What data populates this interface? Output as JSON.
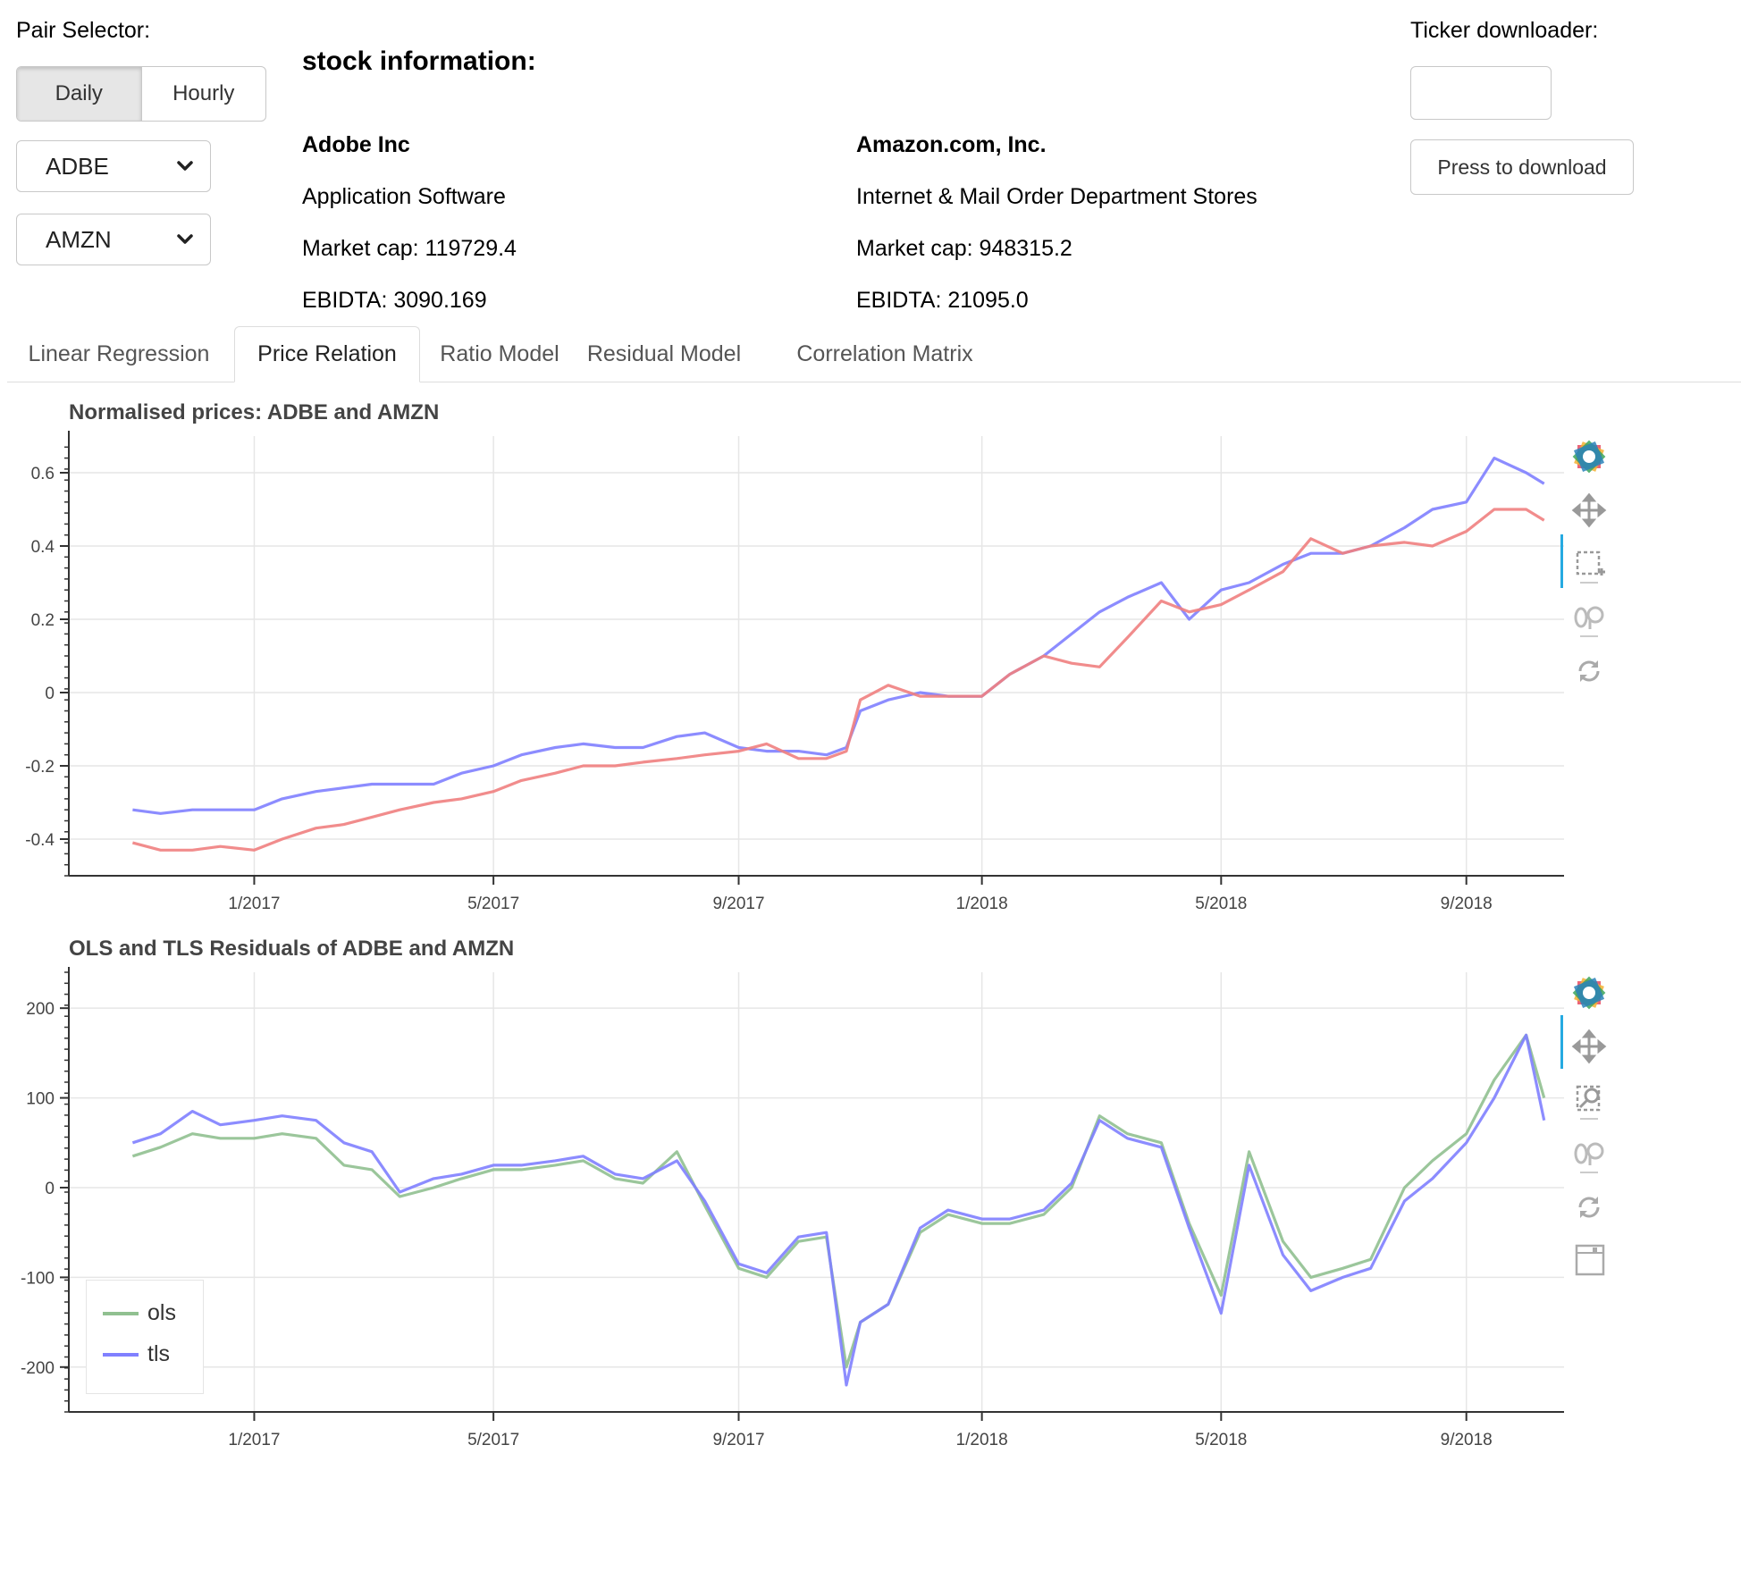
{
  "pair_selector": {
    "label": "Pair Selector:",
    "options": [
      "Daily",
      "Hourly"
    ],
    "selected": "Daily",
    "ticker_a": "ADBE",
    "ticker_b": "AMZN"
  },
  "stock_info": {
    "heading": "stock information:",
    "left": {
      "name": "Adobe Inc",
      "industry": "Application Software",
      "market_cap": "Market cap: 119729.4",
      "ebidta": "EBIDTA: 3090.169"
    },
    "right": {
      "name": "Amazon.com, Inc.",
      "industry": "Internet & Mail Order Department Stores",
      "market_cap": "Market cap: 948315.2",
      "ebidta": "EBIDTA: 21095.0"
    }
  },
  "downloader": {
    "label": "Ticker downloader:",
    "input_value": "",
    "button_label": "Press to download"
  },
  "tabs": [
    {
      "label": "Linear Regression",
      "active": false
    },
    {
      "label": "Price Relation",
      "active": true
    },
    {
      "label": "Ratio Model",
      "active": false
    },
    {
      "label": "Residual Model",
      "active": false
    },
    {
      "label": "Correlation Matrix",
      "active": false
    }
  ],
  "toolbar_icons": [
    "bokeh-logo-icon",
    "pan-icon",
    "box-zoom-icon",
    "wheel-zoom-icon",
    "reset-icon",
    "save-icon"
  ],
  "chart_data": [
    {
      "type": "line",
      "title": "Normalised prices: ADBE and AMZN",
      "xlabel": "",
      "ylabel": "",
      "ylim": [
        -0.5,
        0.7
      ],
      "xlim": [
        "2016-09-30",
        "2018-10-20"
      ],
      "x_ticks": [
        "1/2017",
        "5/2017",
        "9/2017",
        "1/2018",
        "5/2018",
        "9/2018"
      ],
      "y_ticks": [
        "-0.4",
        "-0.2",
        "0",
        "0.2",
        "0.4",
        "0.6"
      ],
      "grid": true,
      "series": [
        {
          "color": "#8080ff",
          "x": [
            "2016-11-01",
            "2016-11-15",
            "2016-12-01",
            "2016-12-15",
            "2017-01-01",
            "2017-01-15",
            "2017-02-01",
            "2017-02-15",
            "2017-03-01",
            "2017-03-15",
            "2017-04-01",
            "2017-04-15",
            "2017-05-01",
            "2017-05-15",
            "2017-06-01",
            "2017-06-15",
            "2017-07-01",
            "2017-07-15",
            "2017-08-01",
            "2017-08-15",
            "2017-09-01",
            "2017-09-15",
            "2017-10-01",
            "2017-10-15",
            "2017-10-25",
            "2017-11-01",
            "2017-11-15",
            "2017-12-01",
            "2017-12-15",
            "2018-01-01",
            "2018-01-15",
            "2018-02-01",
            "2018-02-15",
            "2018-03-01",
            "2018-03-15",
            "2018-04-01",
            "2018-04-15",
            "2018-05-01",
            "2018-05-15",
            "2018-06-01",
            "2018-06-15",
            "2018-07-01",
            "2018-07-15",
            "2018-08-01",
            "2018-08-15",
            "2018-09-01",
            "2018-09-15",
            "2018-10-01",
            "2018-10-10"
          ],
          "y": [
            -0.32,
            -0.33,
            -0.32,
            -0.32,
            -0.32,
            -0.29,
            -0.27,
            -0.26,
            -0.25,
            -0.25,
            -0.25,
            -0.22,
            -0.2,
            -0.17,
            -0.15,
            -0.14,
            -0.15,
            -0.15,
            -0.12,
            -0.11,
            -0.15,
            -0.16,
            -0.16,
            -0.17,
            -0.15,
            -0.05,
            -0.02,
            0.0,
            -0.01,
            -0.01,
            0.05,
            0.1,
            0.16,
            0.22,
            0.26,
            0.3,
            0.2,
            0.28,
            0.3,
            0.35,
            0.38,
            0.38,
            0.4,
            0.45,
            0.5,
            0.52,
            0.64,
            0.6,
            0.57
          ]
        },
        {
          "color": "#f08080",
          "x": [
            "2016-11-01",
            "2016-11-15",
            "2016-12-01",
            "2016-12-15",
            "2017-01-01",
            "2017-01-15",
            "2017-02-01",
            "2017-02-15",
            "2017-03-01",
            "2017-03-15",
            "2017-04-01",
            "2017-04-15",
            "2017-05-01",
            "2017-05-15",
            "2017-06-01",
            "2017-06-15",
            "2017-07-01",
            "2017-07-15",
            "2017-08-01",
            "2017-08-15",
            "2017-09-01",
            "2017-09-15",
            "2017-10-01",
            "2017-10-15",
            "2017-10-25",
            "2017-11-01",
            "2017-11-15",
            "2017-12-01",
            "2017-12-15",
            "2018-01-01",
            "2018-01-15",
            "2018-02-01",
            "2018-02-15",
            "2018-03-01",
            "2018-03-15",
            "2018-04-01",
            "2018-04-15",
            "2018-05-01",
            "2018-05-15",
            "2018-06-01",
            "2018-06-15",
            "2018-07-01",
            "2018-07-15",
            "2018-08-01",
            "2018-08-15",
            "2018-09-01",
            "2018-09-15",
            "2018-10-01",
            "2018-10-10"
          ],
          "y": [
            -0.41,
            -0.43,
            -0.43,
            -0.42,
            -0.43,
            -0.4,
            -0.37,
            -0.36,
            -0.34,
            -0.32,
            -0.3,
            -0.29,
            -0.27,
            -0.24,
            -0.22,
            -0.2,
            -0.2,
            -0.19,
            -0.18,
            -0.17,
            -0.16,
            -0.14,
            -0.18,
            -0.18,
            -0.16,
            -0.02,
            0.02,
            -0.01,
            -0.01,
            -0.01,
            0.05,
            0.1,
            0.08,
            0.07,
            0.15,
            0.25,
            0.22,
            0.24,
            0.28,
            0.33,
            0.42,
            0.38,
            0.4,
            0.41,
            0.4,
            0.44,
            0.5,
            0.5,
            0.47
          ]
        }
      ]
    },
    {
      "type": "line",
      "title": "OLS and TLS Residuals of ADBE and AMZN",
      "xlabel": "",
      "ylabel": "",
      "ylim": [
        -250,
        240
      ],
      "xlim": [
        "2016-09-30",
        "2018-10-20"
      ],
      "x_ticks": [
        "1/2017",
        "5/2017",
        "9/2017",
        "1/2018",
        "5/2018",
        "9/2018"
      ],
      "y_ticks": [
        "-200",
        "-100",
        "0",
        "100",
        "200"
      ],
      "grid": true,
      "legend": "bottom-left",
      "series": [
        {
          "name": "ols",
          "color": "#90c090",
          "x": [
            "2016-11-01",
            "2016-11-15",
            "2016-12-01",
            "2016-12-15",
            "2017-01-01",
            "2017-01-15",
            "2017-02-01",
            "2017-02-15",
            "2017-03-01",
            "2017-03-15",
            "2017-04-01",
            "2017-04-15",
            "2017-05-01",
            "2017-05-15",
            "2017-06-01",
            "2017-06-15",
            "2017-07-01",
            "2017-07-15",
            "2017-08-01",
            "2017-08-15",
            "2017-09-01",
            "2017-09-15",
            "2017-10-01",
            "2017-10-15",
            "2017-10-25",
            "2017-11-01",
            "2017-11-15",
            "2017-12-01",
            "2017-12-15",
            "2018-01-01",
            "2018-01-15",
            "2018-02-01",
            "2018-02-15",
            "2018-03-01",
            "2018-03-15",
            "2018-04-01",
            "2018-04-15",
            "2018-05-01",
            "2018-05-15",
            "2018-06-01",
            "2018-06-15",
            "2018-07-01",
            "2018-07-15",
            "2018-08-01",
            "2018-08-15",
            "2018-09-01",
            "2018-09-15",
            "2018-10-01",
            "2018-10-10"
          ],
          "y": [
            35,
            45,
            60,
            55,
            55,
            60,
            55,
            25,
            20,
            -10,
            0,
            10,
            20,
            20,
            25,
            30,
            10,
            5,
            40,
            -20,
            -90,
            -100,
            -60,
            -55,
            -200,
            -150,
            -130,
            -50,
            -30,
            -40,
            -40,
            -30,
            0,
            80,
            60,
            50,
            -40,
            -120,
            40,
            -60,
            -100,
            -90,
            -80,
            0,
            30,
            60,
            120,
            170,
            100
          ]
        },
        {
          "name": "tls",
          "color": "#8080ff",
          "x": [
            "2016-11-01",
            "2016-11-15",
            "2016-12-01",
            "2016-12-15",
            "2017-01-01",
            "2017-01-15",
            "2017-02-01",
            "2017-02-15",
            "2017-03-01",
            "2017-03-15",
            "2017-04-01",
            "2017-04-15",
            "2017-05-01",
            "2017-05-15",
            "2017-06-01",
            "2017-06-15",
            "2017-07-01",
            "2017-07-15",
            "2017-08-01",
            "2017-08-15",
            "2017-09-01",
            "2017-09-15",
            "2017-10-01",
            "2017-10-15",
            "2017-10-25",
            "2017-11-01",
            "2017-11-15",
            "2017-12-01",
            "2017-12-15",
            "2018-01-01",
            "2018-01-15",
            "2018-02-01",
            "2018-02-15",
            "2018-03-01",
            "2018-03-15",
            "2018-04-01",
            "2018-04-15",
            "2018-05-01",
            "2018-05-15",
            "2018-06-01",
            "2018-06-15",
            "2018-07-01",
            "2018-07-15",
            "2018-08-01",
            "2018-08-15",
            "2018-09-01",
            "2018-09-15",
            "2018-10-01",
            "2018-10-10"
          ],
          "y": [
            50,
            60,
            85,
            70,
            75,
            80,
            75,
            50,
            40,
            -5,
            10,
            15,
            25,
            25,
            30,
            35,
            15,
            10,
            30,
            -15,
            -85,
            -95,
            -55,
            -50,
            -220,
            -150,
            -130,
            -45,
            -25,
            -35,
            -35,
            -25,
            5,
            75,
            55,
            45,
            -45,
            -140,
            25,
            -75,
            -115,
            -100,
            -90,
            -15,
            10,
            50,
            100,
            170,
            75
          ]
        }
      ]
    }
  ]
}
